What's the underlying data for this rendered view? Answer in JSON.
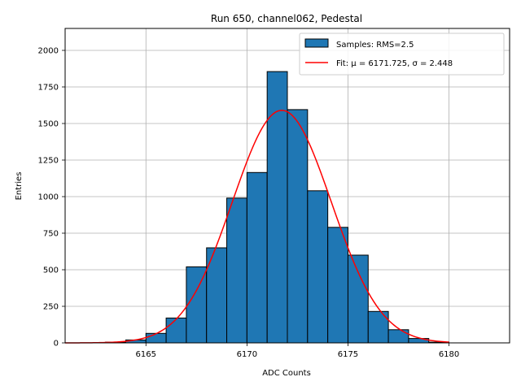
{
  "chart_data": {
    "type": "bar",
    "title": "Run 650, channel062, Pedestal",
    "xlabel": "ADC Counts",
    "ylabel": "Entries",
    "xlim": [
      6161,
      6183
    ],
    "ylim": [
      0,
      2150
    ],
    "xticks": [
      6165,
      6170,
      6175,
      6180
    ],
    "yticks": [
      0,
      250,
      500,
      750,
      1000,
      1250,
      1500,
      1750,
      2000
    ],
    "grid": true,
    "legend_placement": "top-right",
    "bin_edges": [
      6162,
      6163,
      6164,
      6165,
      6166,
      6167,
      6168,
      6169,
      6170,
      6171,
      6172,
      6173,
      6174,
      6175,
      6176,
      6177,
      6178,
      6179,
      6180
    ],
    "series": [
      {
        "name": "Samples: RMS=2.5",
        "kind": "histogram",
        "color": "#1f77b4",
        "values": [
          0,
          5,
          20,
          65,
          170,
          520,
          650,
          990,
          1165,
          1855,
          1595,
          1040,
          790,
          600,
          215,
          90,
          30,
          5
        ]
      },
      {
        "name": "Fit: μ = 6171.725, σ = 2.448",
        "kind": "line",
        "color": "#ff0000",
        "mu": 6171.725,
        "sigma": 2.448,
        "amplitude": 1590,
        "x_range": [
          6161,
          6180
        ]
      }
    ]
  }
}
